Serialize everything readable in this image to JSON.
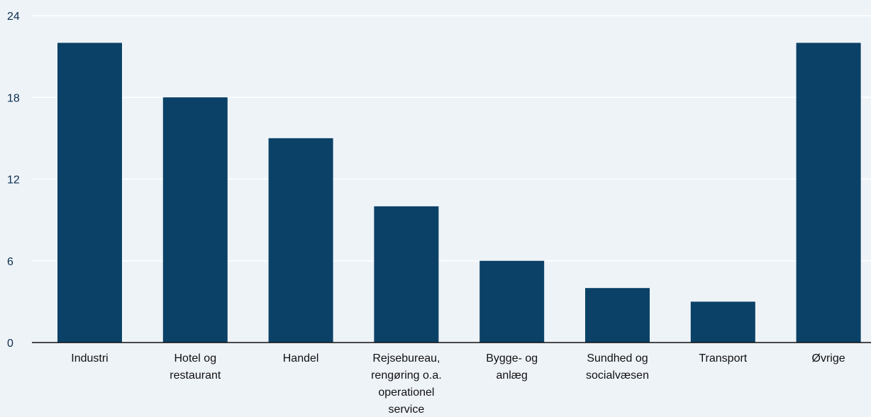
{
  "chart_data": {
    "type": "bar",
    "categories": [
      [
        "Industri"
      ],
      [
        "Hotel og",
        "restaurant"
      ],
      [
        "Handel"
      ],
      [
        "Rejsebureau,",
        "rengøring o.a.",
        "operationel",
        "service"
      ],
      [
        "Bygge- og",
        "anlæg"
      ],
      [
        "Sundhed og",
        "socialvæsen"
      ],
      [
        "Transport"
      ],
      [
        "Øvrige"
      ]
    ],
    "values": [
      22,
      18,
      15,
      10,
      6,
      4,
      3,
      22
    ],
    "ylim": [
      0,
      24
    ],
    "yticks": [
      "0",
      "6",
      "12",
      "18",
      "24"
    ],
    "bar_color": "#0b4166",
    "grid_color": "#ffffff",
    "axis_color": "#111111",
    "grid": true
  }
}
